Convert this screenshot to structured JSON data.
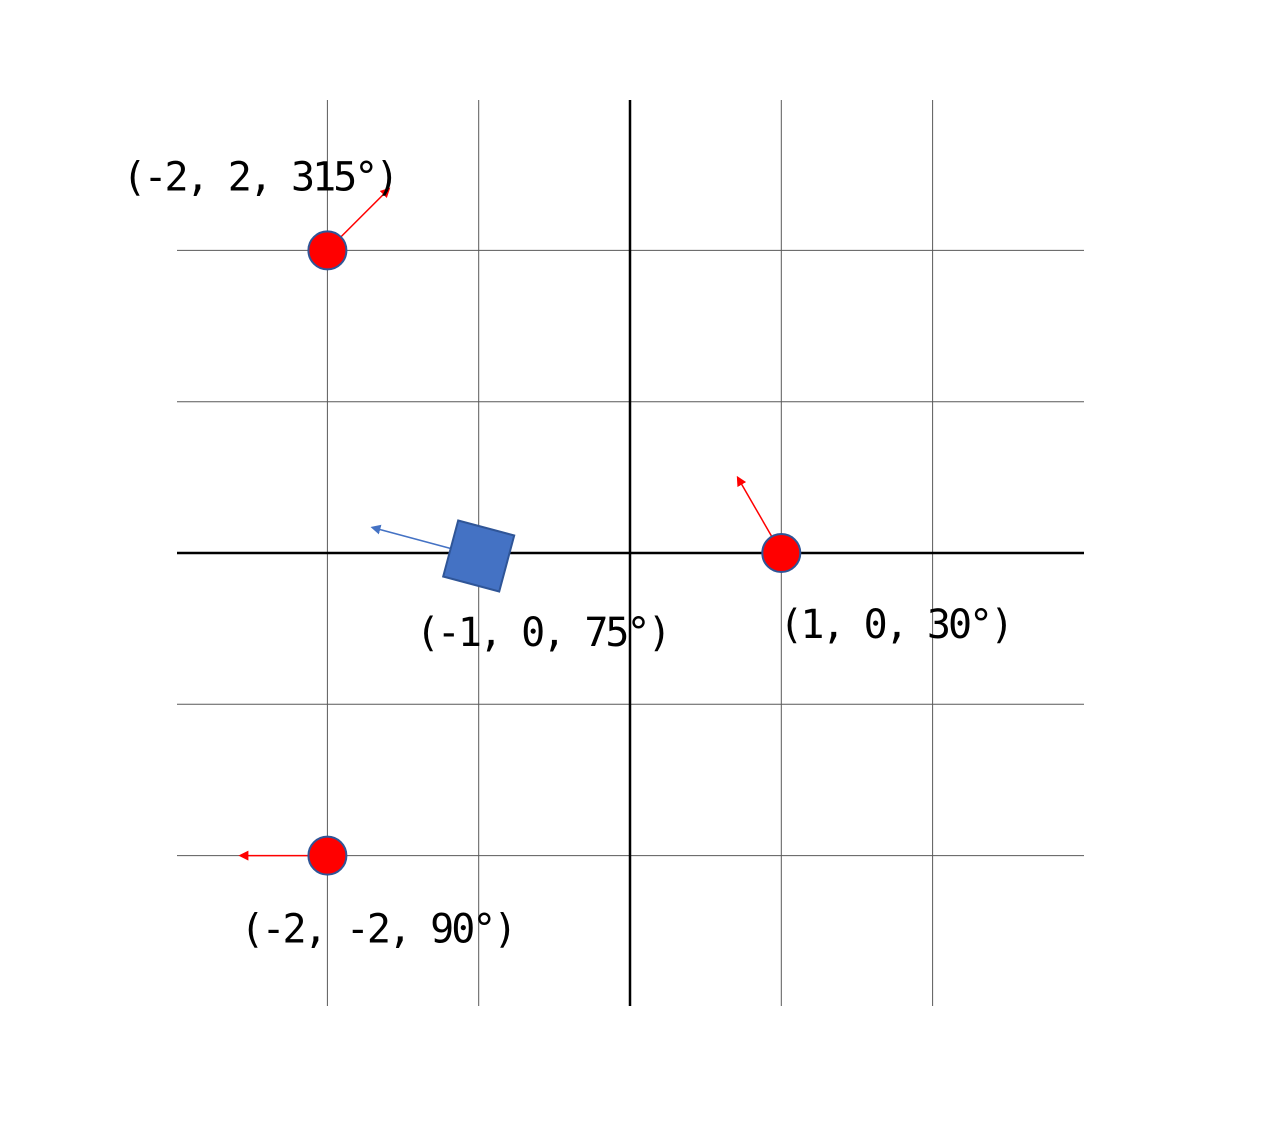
{
  "diagram": {
    "grid": {
      "x_min": -3,
      "x_max": 3,
      "y_min": -3,
      "y_max": 3,
      "gridlines": true
    },
    "colors": {
      "grid": "#595959",
      "axis": "#000000",
      "point_fill": "#ff0000",
      "point_stroke": "#2f5597",
      "point_arrow": "#ff0000",
      "robot_fill": "#4472c4",
      "robot_stroke": "#2f5597",
      "robot_arrow": "#4472c4"
    },
    "points": [
      {
        "x": -2,
        "y": 2,
        "heading": 315,
        "label": "(-2, 2, 315°)"
      },
      {
        "x": 1,
        "y": 0,
        "heading": 30,
        "label": "(1, 0, 30°)"
      },
      {
        "x": -2,
        "y": -2,
        "heading": 90,
        "label": "(-2, -2, 90°)"
      }
    ],
    "robot": {
      "x": -1,
      "y": 0,
      "heading": 75,
      "label": "(-1, 0, 75°)"
    }
  }
}
